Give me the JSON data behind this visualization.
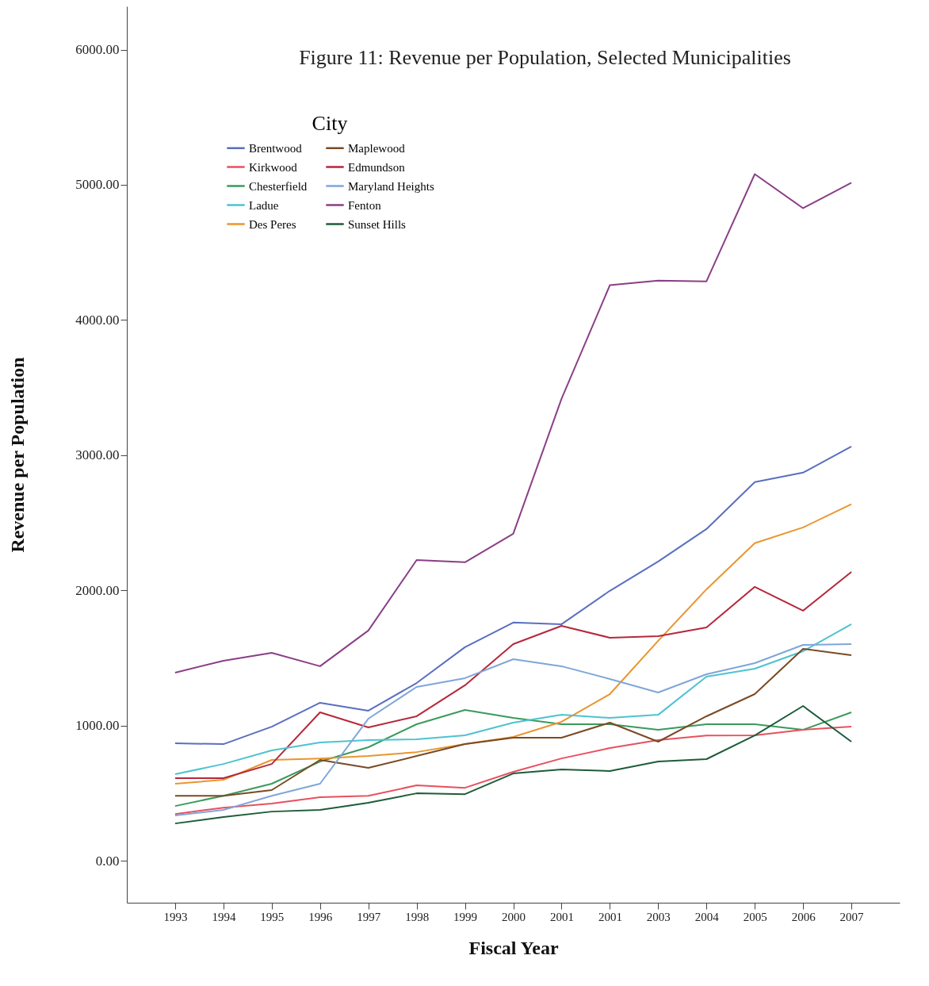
{
  "chart_data": {
    "type": "line",
    "title": "Figure 11: Revenue per Population, Selected Municipalities",
    "xlabel": "Fiscal Year",
    "ylabel": "Revenue per Population",
    "legend_title": "City",
    "legend": "top left",
    "grid": false,
    "marker": "none",
    "line_style": "solid",
    "categories": [
      "1993",
      "1994",
      "1995",
      "1996",
      "1997",
      "1998",
      "1999",
      "2000",
      "2001",
      "2001",
      "2003",
      "2004",
      "2005",
      "2006",
      "2007"
    ],
    "ylim": [
      -310,
      6320
    ],
    "yticks": [
      {
        "value": 0,
        "label": "0.00"
      },
      {
        "value": 1000,
        "label": "1000.00"
      },
      {
        "value": 2000,
        "label": "2000.00"
      },
      {
        "value": 3000,
        "label": "3000.00"
      },
      {
        "value": 4000,
        "label": "4000.00"
      },
      {
        "value": 5000,
        "label": "5000.00"
      },
      {
        "value": 6000,
        "label": "6000.00"
      }
    ],
    "series": [
      {
        "name": "Brentwood",
        "color": "#5a6fbf",
        "values": [
          869,
          863,
          992,
          1169,
          1110,
          1315,
          1580,
          1762,
          1750,
          1997,
          2214,
          2454,
          2801,
          2871,
          3065
        ]
      },
      {
        "name": "Chesterfield",
        "color": "#3a9a5c",
        "values": [
          405,
          481,
          570,
          734,
          840,
          1010,
          1116,
          1057,
          1010,
          1010,
          969,
          1010,
          1010,
          969,
          1098
        ]
      },
      {
        "name": "Des Peres",
        "color": "#e8962e",
        "values": [
          570,
          599,
          746,
          757,
          775,
          804,
          863,
          916,
          1028,
          1233,
          1627,
          2008,
          2349,
          2466,
          2637
        ]
      },
      {
        "name": "Edmundson",
        "color": "#b5283a",
        "values": [
          611,
          611,
          716,
          1098,
          987,
          1069,
          1298,
          1603,
          1738,
          1650,
          1662,
          1726,
          2026,
          1850,
          2137
        ]
      },
      {
        "name": "Fenton",
        "color": "#8a3f86",
        "values": [
          1392,
          1480,
          1538,
          1439,
          1703,
          2225,
          2208,
          2419,
          3418,
          4257,
          4292,
          4286,
          5079,
          4827,
          5015
        ]
      },
      {
        "name": "Kirkwood",
        "color": "#e8505f",
        "values": [
          346,
          393,
          423,
          470,
          481,
          558,
          540,
          658,
          757,
          834,
          893,
          927,
          928,
          969,
          992
        ]
      },
      {
        "name": "Ladue",
        "color": "#4cc3d0",
        "values": [
          640,
          716,
          816,
          875,
          893,
          898,
          928,
          1022,
          1080,
          1057,
          1080,
          1362,
          1421,
          1550,
          1750
        ]
      },
      {
        "name": "Maplewood",
        "color": "#7a4a24",
        "values": [
          481,
          481,
          523,
          746,
          687,
          775,
          863,
          910,
          910,
          1022,
          881,
          1069,
          1233,
          1568,
          1521
        ]
      },
      {
        "name": "Maryland Heights",
        "color": "#7fa6d8",
        "values": [
          335,
          376,
          481,
          570,
          1051,
          1286,
          1351,
          1491,
          1439,
          1345,
          1245,
          1380,
          1462,
          1597,
          1603
        ]
      },
      {
        "name": "Sunset Hills",
        "color": "#1d5c3a",
        "values": [
          276,
          323,
          364,
          376,
          429,
          499,
          493,
          646,
          675,
          664,
          734,
          752,
          927,
          1145,
          881
        ]
      }
    ]
  }
}
